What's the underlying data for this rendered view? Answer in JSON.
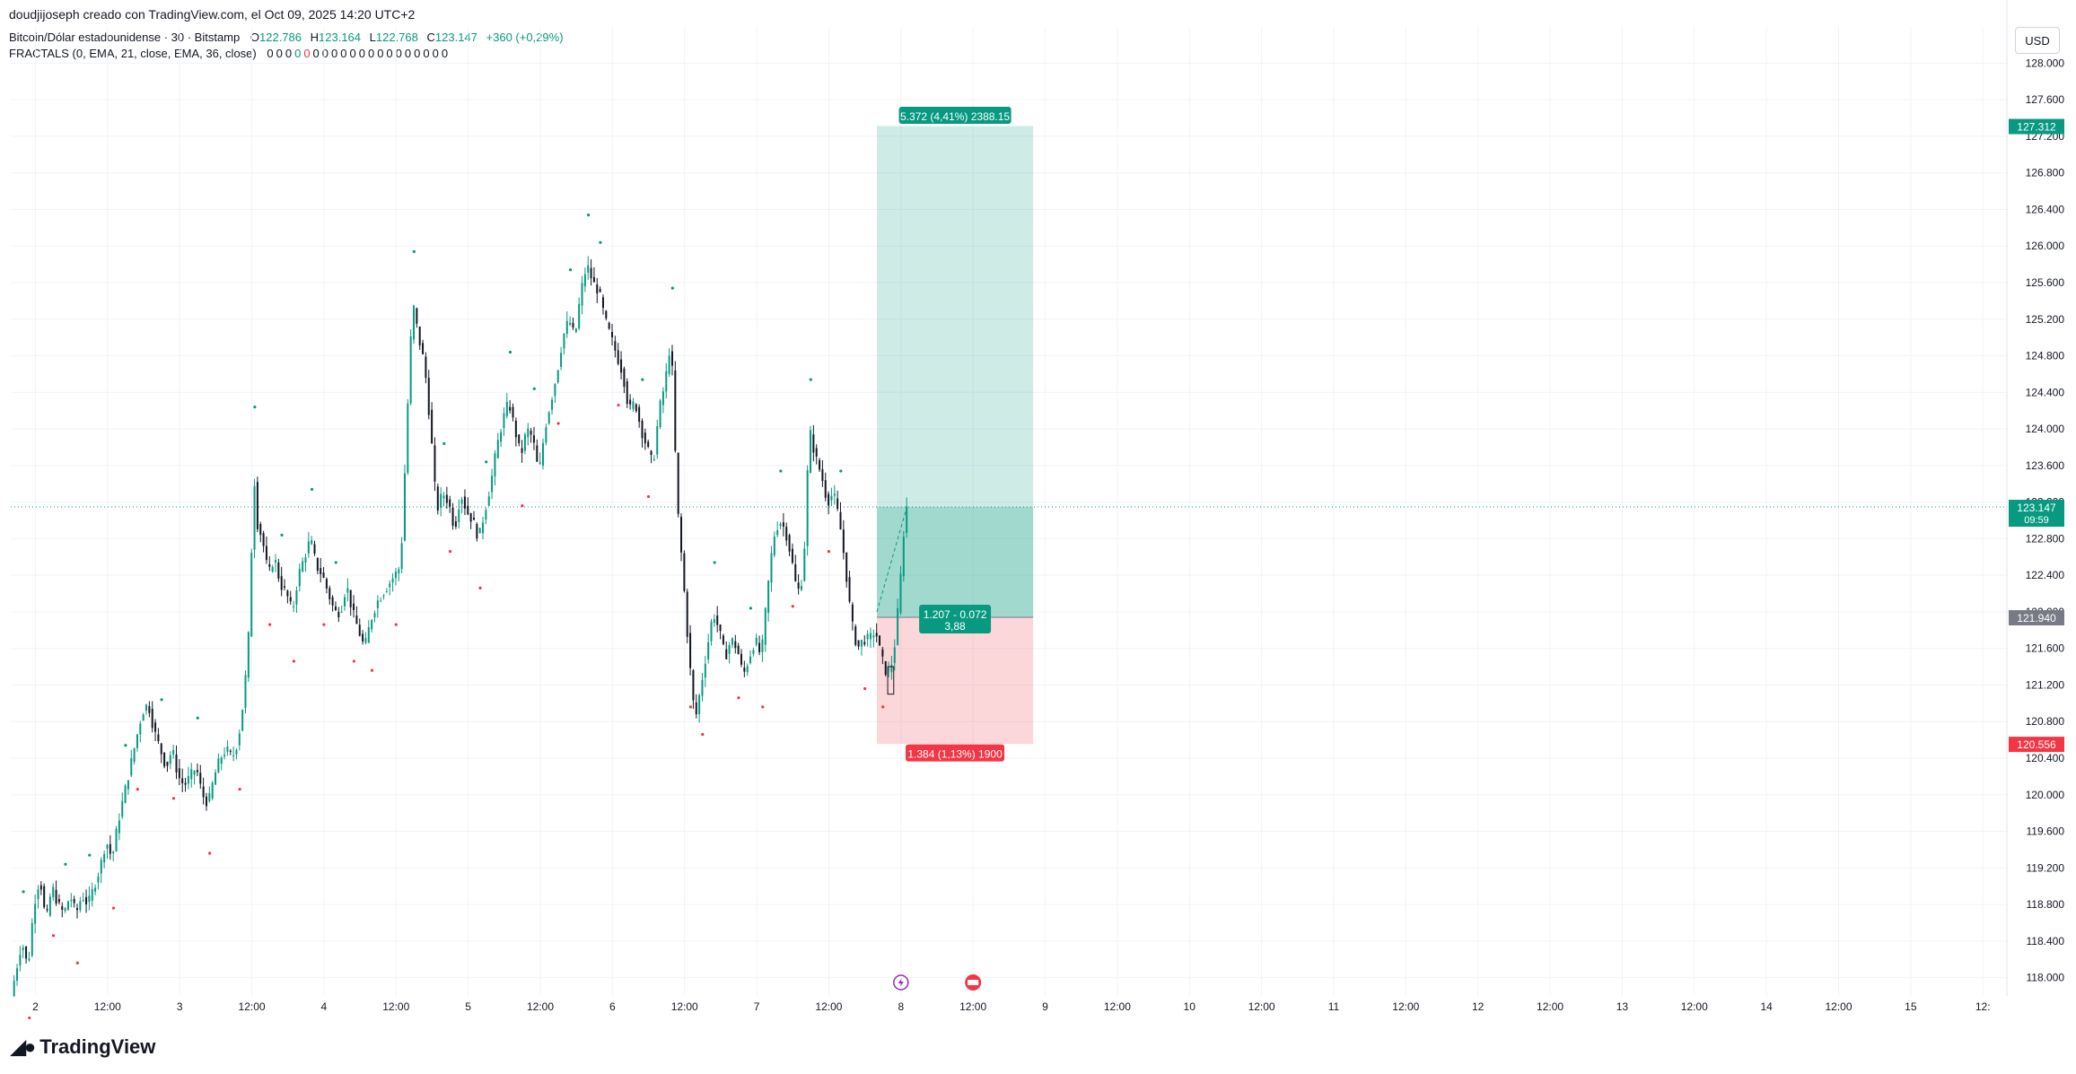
{
  "header": {
    "creator": "doudjijoseph creado con TradingView.com, el Oct 09, 2025 14:20 UTC+2",
    "symbol": "Bitcoin/Dólar estadounidense · 30 · Bitstamp",
    "ohlc": {
      "o_label": "O",
      "o": "122.786",
      "h_label": "H",
      "h": "123.164",
      "l_label": "L",
      "l": "122.768",
      "c_label": "C",
      "c": "123.147",
      "change": "+360 (+0,29%)"
    },
    "indicator": "FRACTALS (0, EMA, 21, close, EMA, 36, close)",
    "indicator_values": [
      "0",
      "0",
      "0",
      "0",
      "0",
      "0",
      "0",
      "0",
      "0",
      "0",
      "0",
      "0",
      "0",
      "0",
      "0",
      "0",
      "0",
      "0",
      "0",
      "0"
    ]
  },
  "currency": "USD",
  "footer": {
    "brand": "TradingView"
  },
  "colors": {
    "up": "#089981",
    "down": "#131722",
    "profit": "#089981",
    "loss": "#f23645",
    "grid": "#f0f3fa"
  },
  "chart_data": {
    "type": "candlestick",
    "symbol": "BTCUSD",
    "timeframe": "30",
    "ylim": [
      117800,
      128200
    ],
    "y_ticks": [
      118000,
      118400,
      118800,
      119200,
      119600,
      120000,
      120400,
      120800,
      121200,
      121600,
      122000,
      122400,
      122800,
      123200,
      123600,
      124000,
      124400,
      124800,
      125200,
      125600,
      126000,
      126400,
      126800,
      127200,
      127600,
      128000
    ],
    "y_tick_labels": [
      "118.000",
      "118.400",
      "118.800",
      "119.200",
      "119.600",
      "120.000",
      "120.400",
      "120.800",
      "121.200",
      "121.600",
      "122.000",
      "122.400",
      "122.800",
      "123.200",
      "123.600",
      "124.000",
      "124.400",
      "124.800",
      "125.200",
      "125.600",
      "126.000",
      "126.400",
      "126.800",
      "127.200",
      "127.600",
      "128.000"
    ],
    "x_tick_labels": [
      "2",
      "12:00",
      "3",
      "12:00",
      "4",
      "12:00",
      "5",
      "12:00",
      "6",
      "12:00",
      "7",
      "12:00",
      "8",
      "12:00",
      "9",
      "12:00",
      "10",
      "12:00",
      "11",
      "12:00",
      "12",
      "12:00",
      "13",
      "12:00",
      "14",
      "12:00",
      "15",
      "12:"
    ],
    "x_tick_hours": [
      24,
      36,
      48,
      60,
      72,
      84,
      96,
      108,
      120,
      132,
      144,
      156,
      168,
      180,
      192,
      204,
      216,
      228,
      240,
      252,
      264,
      276,
      288,
      300,
      312,
      324,
      336,
      348
    ],
    "x_range_hours": [
      19.9,
      352
    ],
    "price_path": [
      [
        20.2,
        117800
      ],
      [
        22,
        118400
      ],
      [
        23,
        118100
      ],
      [
        24,
        118800
      ],
      [
        25,
        119100
      ],
      [
        26,
        118600
      ],
      [
        27,
        119000
      ],
      [
        28,
        118800
      ],
      [
        29,
        118700
      ],
      [
        30,
        118900
      ],
      [
        31,
        118700
      ],
      [
        32,
        118900
      ],
      [
        33,
        118800
      ],
      [
        34,
        119000
      ],
      [
        35,
        119200
      ],
      [
        36,
        119500
      ],
      [
        37,
        119300
      ],
      [
        38,
        119700
      ],
      [
        39,
        120000
      ],
      [
        40,
        120300
      ],
      [
        41,
        120600
      ],
      [
        42,
        120900
      ],
      [
        43,
        121000
      ],
      [
        44,
        120700
      ],
      [
        45,
        120500
      ],
      [
        46,
        120300
      ],
      [
        47,
        120500
      ],
      [
        48,
        120200
      ],
      [
        49,
        120100
      ],
      [
        50,
        120200
      ],
      [
        51,
        120300
      ],
      [
        52,
        120000
      ],
      [
        53,
        119900
      ],
      [
        54,
        120200
      ],
      [
        55,
        120400
      ],
      [
        56,
        120500
      ],
      [
        57,
        120400
      ],
      [
        58,
        120600
      ],
      [
        59,
        121100
      ],
      [
        60,
        122000
      ],
      [
        60.5,
        123700
      ],
      [
        61,
        123000
      ],
      [
        62,
        122800
      ],
      [
        63,
        122400
      ],
      [
        64,
        122600
      ],
      [
        65,
        122300
      ],
      [
        66,
        122200
      ],
      [
        67,
        122000
      ],
      [
        68,
        122400
      ],
      [
        69,
        122600
      ],
      [
        70,
        122800
      ],
      [
        71,
        122500
      ],
      [
        72,
        122400
      ],
      [
        73,
        122200
      ],
      [
        74,
        122000
      ],
      [
        75,
        122000
      ],
      [
        76,
        122300
      ],
      [
        77,
        122000
      ],
      [
        78,
        121800
      ],
      [
        79,
        121600
      ],
      [
        80,
        121900
      ],
      [
        81,
        122100
      ],
      [
        82,
        122200
      ],
      [
        83,
        122300
      ],
      [
        84,
        122400
      ],
      [
        85,
        122500
      ],
      [
        85.5,
        123200
      ],
      [
        86,
        124000
      ],
      [
        87,
        125400
      ],
      [
        88,
        125000
      ],
      [
        89,
        124700
      ],
      [
        90,
        124000
      ],
      [
        91,
        123100
      ],
      [
        92,
        123300
      ],
      [
        93,
        123200
      ],
      [
        94,
        122900
      ],
      [
        95,
        123300
      ],
      [
        96,
        123100
      ],
      [
        97,
        123000
      ],
      [
        98,
        122800
      ],
      [
        99,
        123100
      ],
      [
        100,
        123400
      ],
      [
        101,
        123800
      ],
      [
        102,
        124100
      ],
      [
        103,
        124300
      ],
      [
        104,
        124000
      ],
      [
        105,
        123700
      ],
      [
        106,
        124000
      ],
      [
        107,
        123900
      ],
      [
        108,
        123500
      ],
      [
        109,
        124000
      ],
      [
        110,
        124300
      ],
      [
        111,
        124600
      ],
      [
        112,
        125000
      ],
      [
        113,
        125200
      ],
      [
        114,
        125000
      ],
      [
        115,
        125500
      ],
      [
        116,
        125800
      ],
      [
        117,
        125600
      ],
      [
        118,
        125500
      ],
      [
        119,
        125200
      ],
      [
        120,
        125000
      ],
      [
        121,
        124800
      ],
      [
        122,
        124600
      ],
      [
        123,
        124200
      ],
      [
        124,
        124300
      ],
      [
        125,
        124000
      ],
      [
        126,
        123800
      ],
      [
        127,
        123600
      ],
      [
        128,
        124200
      ],
      [
        129,
        124500
      ],
      [
        130,
        125000
      ],
      [
        131,
        123200
      ],
      [
        132,
        122400
      ],
      [
        133,
        121500
      ],
      [
        134,
        120800
      ],
      [
        135,
        121200
      ],
      [
        136,
        121600
      ],
      [
        137,
        122000
      ],
      [
        138,
        121800
      ],
      [
        139,
        121500
      ],
      [
        140,
        121700
      ],
      [
        141,
        121600
      ],
      [
        142,
        121300
      ],
      [
        143,
        121500
      ],
      [
        144,
        121700
      ],
      [
        145,
        121500
      ],
      [
        146,
        122200
      ],
      [
        147,
        122800
      ],
      [
        148,
        123000
      ],
      [
        149,
        122900
      ],
      [
        150,
        122600
      ],
      [
        151,
        122200
      ],
      [
        152,
        122400
      ],
      [
        153,
        124000
      ],
      [
        154,
        123700
      ],
      [
        155,
        123500
      ],
      [
        156,
        123200
      ],
      [
        157,
        123300
      ],
      [
        158,
        123000
      ],
      [
        159,
        122500
      ],
      [
        160,
        121900
      ],
      [
        161,
        121600
      ],
      [
        162,
        121700
      ],
      [
        163,
        121700
      ],
      [
        164,
        121800
      ],
      [
        165,
        121500
      ],
      [
        166,
        121300
      ],
      [
        167,
        121500
      ],
      [
        168,
        122200
      ],
      [
        169,
        123147
      ]
    ],
    "fractals_up_hours": [
      22,
      29,
      33,
      39,
      45,
      51,
      60.5,
      65,
      70,
      74,
      87,
      92,
      99,
      103,
      107,
      113,
      116,
      118,
      125,
      130,
      137,
      143,
      148,
      153,
      158
    ],
    "fractals_down_hours": [
      23,
      27,
      31,
      37,
      41,
      47,
      53,
      58,
      63,
      67,
      72,
      77,
      80,
      84,
      93,
      98,
      105,
      111,
      121,
      126,
      133,
      135,
      141,
      145,
      150,
      156,
      162,
      165
    ],
    "last_price": "123.147",
    "countdown": "09:59",
    "position": {
      "type": "long",
      "entry": 121940,
      "target": 127312,
      "stop": 120556,
      "start_hour": 164,
      "end_hour": 190,
      "entry_label": "121.940",
      "target_label": "127.312",
      "stop_label": "120.556",
      "target_info": "5.372 (4,41%) 2388.15",
      "stop_info": "1.384 (1,13%) 1900",
      "center_info_1": "1.207 - 0.072",
      "center_info_2": "3,88"
    },
    "events": [
      {
        "hour": 168,
        "icon": "lightning-icon"
      },
      {
        "hour": 180,
        "icon": "flag-icon"
      }
    ]
  }
}
